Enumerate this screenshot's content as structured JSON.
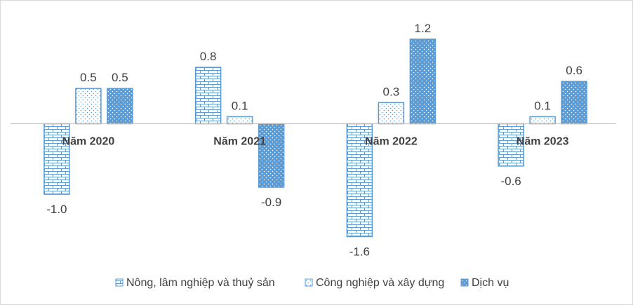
{
  "chart_data": {
    "type": "bar",
    "categories": [
      "Năm 2020",
      "Năm 2021",
      "Năm 2022",
      "Năm 2023"
    ],
    "series": [
      {
        "name": "Nông, lâm nghiệp và thuỷ sản",
        "pattern": "brick",
        "values": [
          -1.0,
          0.8,
          -1.6,
          -0.6
        ],
        "labels": [
          "-1.0",
          "0.8",
          "-1.6",
          "-0.6"
        ]
      },
      {
        "name": "Công nghiệp và xây dựng",
        "pattern": "dotted-light",
        "values": [
          0.5,
          0.1,
          0.3,
          0.1
        ],
        "labels": [
          "0.5",
          "0.1",
          "0.3",
          "0.1"
        ]
      },
      {
        "name": "Dịch vụ",
        "pattern": "dotted-solid",
        "values": [
          0.5,
          -0.9,
          1.2,
          0.6
        ],
        "labels": [
          "0.5",
          "-0.9",
          "1.2",
          "0.6"
        ]
      }
    ],
    "ylim": [
      -1.6,
      1.2
    ],
    "grid": false,
    "legend": "bottom",
    "colors": {
      "bar": "#5b9bd5",
      "axis": "#bfbfbf",
      "text": "#404040"
    }
  }
}
